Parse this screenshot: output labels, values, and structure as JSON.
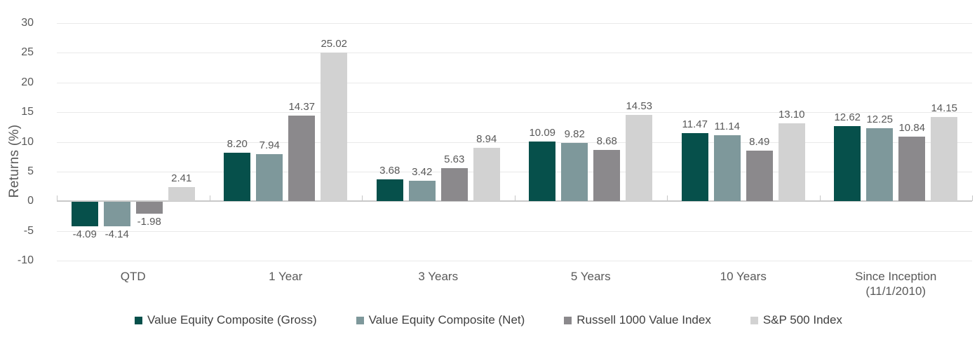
{
  "chart_data": {
    "type": "bar",
    "title": "",
    "ylabel": "Returns (%)",
    "xlabel": "",
    "ylim": [
      -10,
      30
    ],
    "yticks": [
      30,
      25,
      20,
      15,
      10,
      5,
      0,
      -5,
      -10
    ],
    "grid": true,
    "legend_position": "bottom",
    "categories": [
      "QTD",
      "1 Year",
      "3 Years",
      "5 Years",
      "10 Years",
      "Since Inception (11/1/2010)"
    ],
    "category_lines": [
      [
        "QTD"
      ],
      [
        "1 Year"
      ],
      [
        "3 Years"
      ],
      [
        "5 Years"
      ],
      [
        "10 Years"
      ],
      [
        "Since Inception",
        "(11/1/2010)"
      ]
    ],
    "series": [
      {
        "name": "Value Equity Composite (Gross)",
        "color": "#06504b",
        "values": [
          -4.09,
          8.2,
          3.68,
          10.09,
          11.47,
          12.62
        ]
      },
      {
        "name": "Value Equity Composite (Net)",
        "color": "#7e989b",
        "values": [
          -4.14,
          7.94,
          3.42,
          9.82,
          11.14,
          12.25
        ]
      },
      {
        "name": "Russell 1000 Value Index",
        "color": "#8b898c",
        "values": [
          -1.98,
          14.37,
          5.63,
          8.68,
          8.49,
          10.84
        ]
      },
      {
        "name": "S&P 500 Index",
        "color": "#d2d2d2",
        "values": [
          2.41,
          25.02,
          8.94,
          14.53,
          13.1,
          14.15
        ]
      }
    ],
    "colors": {
      "grid": "#e9e9e9",
      "axis_line": "#c9c9c9",
      "tick_label": "#595959",
      "data_label": "#595959",
      "legend_text": "#404040"
    }
  }
}
